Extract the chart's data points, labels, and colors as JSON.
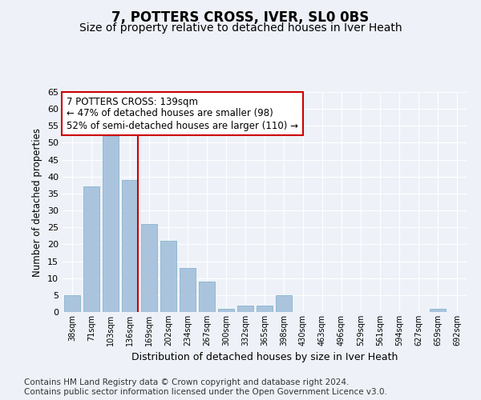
{
  "title": "7, POTTERS CROSS, IVER, SL0 0BS",
  "subtitle": "Size of property relative to detached houses in Iver Heath",
  "xlabel": "Distribution of detached houses by size in Iver Heath",
  "ylabel": "Number of detached properties",
  "categories": [
    "38sqm",
    "71sqm",
    "103sqm",
    "136sqm",
    "169sqm",
    "202sqm",
    "234sqm",
    "267sqm",
    "300sqm",
    "332sqm",
    "365sqm",
    "398sqm",
    "430sqm",
    "463sqm",
    "496sqm",
    "529sqm",
    "561sqm",
    "594sqm",
    "627sqm",
    "659sqm",
    "692sqm"
  ],
  "values": [
    5,
    37,
    52,
    39,
    26,
    21,
    13,
    9,
    1,
    2,
    2,
    5,
    0,
    0,
    0,
    0,
    0,
    0,
    0,
    1,
    0
  ],
  "bar_color": "#aac4de",
  "bar_edge_color": "#8ab4cc",
  "marker_index": 3,
  "marker_color": "#cc0000",
  "annotation_text": "7 POTTERS CROSS: 139sqm\n← 47% of detached houses are smaller (98)\n52% of semi-detached houses are larger (110) →",
  "annotation_box_color": "#ffffff",
  "annotation_box_edge_color": "#cc0000",
  "ylim": [
    0,
    65
  ],
  "yticks": [
    0,
    5,
    10,
    15,
    20,
    25,
    30,
    35,
    40,
    45,
    50,
    55,
    60,
    65
  ],
  "footer_line1": "Contains HM Land Registry data © Crown copyright and database right 2024.",
  "footer_line2": "Contains public sector information licensed under the Open Government Licence v3.0.",
  "bg_color": "#eef2f8",
  "plot_bg_color": "#eef2f8",
  "grid_color": "#ffffff",
  "title_fontsize": 12,
  "subtitle_fontsize": 10,
  "annotation_fontsize": 8.5,
  "footer_fontsize": 7.5,
  "ylabel_fontsize": 8.5,
  "xlabel_fontsize": 9
}
